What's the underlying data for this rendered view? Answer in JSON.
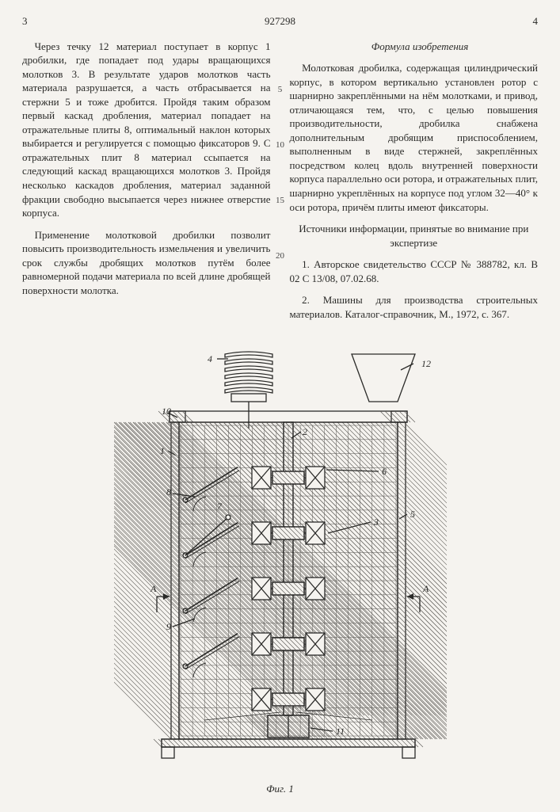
{
  "header": {
    "page_left": "3",
    "doc_number": "927298",
    "page_right": "4"
  },
  "line_numbers": {
    "n5": "5",
    "n10": "10",
    "n15": "15",
    "n20": "20"
  },
  "left_column": {
    "p1": "Через течку 12 материал поступает в корпус 1 дробилки, где попадает под удары вращающихся молотков 3. В результате ударов молотков часть материала разрушается, а часть отбрасывается на стержни 5 и тоже дробится. Пройдя таким образом первый каскад дробления, материал попадает на отражательные плиты 8, оптимальный наклон которых выбирается и регулируется с помощью фиксаторов 9. С отражательных плит 8 материал ссыпается на следующий каскад вращающихся молотков 3. Пройдя несколько каскадов дробления, материал заданной фракции свободно высыпается через нижнее отверстие корпуса.",
    "p2": "Применение молотковой дробилки позволит повысить производительность измельчения и увеличить срок службы дробящих молотков путём более равномерной подачи материала по всей длине дробящей поверхности молотка."
  },
  "right_column": {
    "formula_heading": "Формула изобретения",
    "claim": "Молотковая дробилка, содержащая цилиндрический корпус, в котором вертикально установлен ротор с шарнирно закреплёнными на нём молотками, и привод, отличающаяся тем, что, с целью повышения производительности, дробилка снабжена дополнительным дробящим приспособлением, выполненным в виде стержней, закреплённых посредством колец вдоль внутренней поверхности корпуса параллельно оси ротора, и отражательных плит, шарнирно укреплённых на корпусе под углом 32—40° к оси ротора, причём плиты имеют фиксаторы.",
    "sources_heading": "Источники информации, принятые во внимание при экспертизе",
    "src1": "1. Авторское свидетельство СССР № 388782, кл. B 02 C 13/08, 07.02.68.",
    "src2": "2. Машины для производства строительных материалов. Каталог-справочник, М., 1972, с. 367."
  },
  "figure": {
    "caption": "Фиг. 1",
    "labels": {
      "l1": "1",
      "l2": "2",
      "l3": "3",
      "l4": "4",
      "l5": "5",
      "l6": "6",
      "l7": "7",
      "l8": "8",
      "l9": "9",
      "l10": "10",
      "l11": "11",
      "l12": "12",
      "A_left": "A",
      "A_right": "A"
    },
    "colors": {
      "stroke": "#2a2a28",
      "hatch": "#5c5a56",
      "bg": "#f5f3ef"
    },
    "stroke_width": 1.3,
    "font_size_labels": 12
  }
}
